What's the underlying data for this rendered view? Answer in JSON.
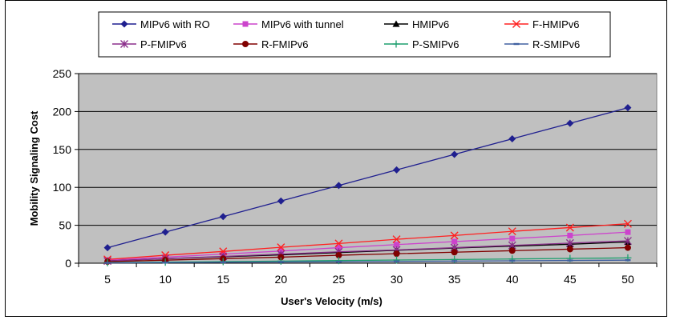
{
  "chart_data": {
    "type": "line",
    "title": "",
    "xlabel": "User's Velocity (m/s)",
    "ylabel": "Mobility Signaling Cost",
    "categories": [
      "5",
      "10",
      "15",
      "20",
      "25",
      "30",
      "35",
      "40",
      "45",
      "50"
    ],
    "ylim": [
      0,
      250
    ],
    "yticks": [
      "0",
      "50",
      "100",
      "150",
      "200",
      "250"
    ],
    "grid": true,
    "plot_background": "#c0c0c0",
    "legend_position": "top",
    "series": [
      {
        "name": "MIPv6 with RO",
        "color": "#1f1f8f",
        "marker": "diamond",
        "values": [
          20.5,
          41,
          61.5,
          82,
          102.5,
          123,
          143.5,
          164,
          184.5,
          205
        ]
      },
      {
        "name": "MIPv6 with tunnel",
        "color": "#cc44cc",
        "marker": "square",
        "values": [
          4,
          8,
          12,
          16,
          20.5,
          24.5,
          28.5,
          32.5,
          36.5,
          41
        ]
      },
      {
        "name": "HMIPv6",
        "color": "#000000",
        "marker": "triangle",
        "values": [
          3,
          6,
          8.5,
          11,
          14,
          17,
          20,
          22.5,
          25,
          28
        ]
      },
      {
        "name": "F-HMIPv6",
        "color": "#ff2020",
        "marker": "x",
        "values": [
          5,
          10.5,
          15.5,
          21,
          26,
          31.5,
          36.5,
          42,
          47,
          52
        ]
      },
      {
        "name": "P-FMIPv6",
        "color": "#8b2f8b",
        "marker": "asterisk",
        "values": [
          3,
          6,
          9,
          12,
          15,
          17.5,
          20.5,
          23.5,
          26.5,
          29.5
        ]
      },
      {
        "name": "R-FMIPv6",
        "color": "#800000",
        "marker": "circle",
        "values": [
          2,
          4,
          6,
          8,
          10.5,
          12.5,
          14.5,
          16.5,
          18.5,
          20.5
        ]
      },
      {
        "name": "P-SMIPv6",
        "color": "#1f9f6f",
        "marker": "plus",
        "values": [
          0.7,
          1.4,
          2.1,
          2.8,
          3.5,
          4.2,
          4.9,
          5.6,
          6.3,
          7
        ]
      },
      {
        "name": "R-SMIPv6",
        "color": "#4060a0",
        "marker": "dash",
        "values": [
          0.4,
          0.8,
          1.2,
          1.6,
          2,
          2.4,
          2.8,
          3.2,
          3.6,
          4
        ]
      }
    ]
  }
}
